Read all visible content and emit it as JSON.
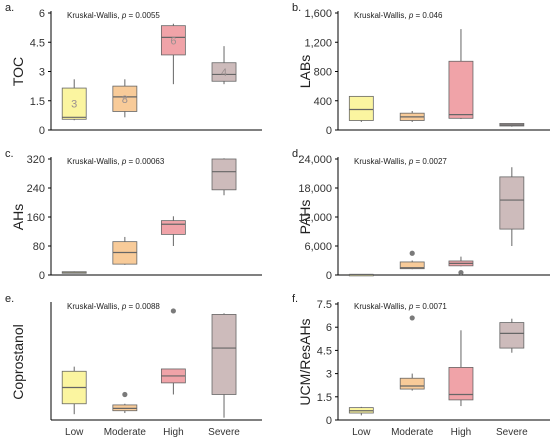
{
  "figure": {
    "type": "boxplot-panel-grid"
  },
  "categories": [
    "Low",
    "Moderate",
    "High",
    "Severe"
  ],
  "colors": {
    "Low": "#fbf5a0",
    "Moderate": "#f8cb99",
    "High": "#f0a3a8",
    "Severe": "#cdbbbb",
    "stroke": "#666666",
    "outlier": "#7a7a7a",
    "axis": "#000000",
    "count_label": "#9a8f8f"
  },
  "chart_data": [
    {
      "type": "boxplot",
      "panel_label": "a.",
      "ylabel": "TOC",
      "stat": "Kruskal-Wallis, p = 0.0055",
      "ylim": [
        0,
        6
      ],
      "yticks": [
        0,
        1.5,
        3,
        4.5,
        6
      ],
      "ytick_labels": [
        "0",
        "1.5",
        "3",
        "4.5",
        "6"
      ],
      "show_xticks": false,
      "boxes": [
        {
          "category": "Low",
          "min": 0.5,
          "q1": 0.55,
          "median": 0.65,
          "q3": 2.15,
          "max": 2.6,
          "outliers": [],
          "count": "3"
        },
        {
          "category": "Moderate",
          "min": 0.65,
          "q1": 0.95,
          "median": 1.7,
          "q3": 2.25,
          "max": 2.6,
          "outliers": [],
          "count": "8"
        },
        {
          "category": "High",
          "min": 2.35,
          "q1": 3.85,
          "median": 4.75,
          "q3": 5.35,
          "max": 5.45,
          "outliers": [],
          "count": "6"
        },
        {
          "category": "Severe",
          "min": 2.35,
          "q1": 2.5,
          "median": 2.85,
          "q3": 3.45,
          "max": 4.3,
          "outliers": [],
          "count": "4"
        }
      ]
    },
    {
      "type": "boxplot",
      "panel_label": "b.",
      "ylabel": "LABs",
      "stat": "Kruskal-Wallis, p = 0.046",
      "ylim": [
        0,
        1600
      ],
      "yticks": [
        0,
        400,
        800,
        1200,
        1600
      ],
      "ytick_labels": [
        "0",
        "400",
        "800",
        "1,200",
        "1,600"
      ],
      "show_xticks": false,
      "boxes": [
        {
          "category": "Low",
          "min": 110,
          "q1": 130,
          "median": 280,
          "q3": 460,
          "max": 460,
          "outliers": []
        },
        {
          "category": "Moderate",
          "min": 110,
          "q1": 130,
          "median": 180,
          "q3": 230,
          "max": 260,
          "outliers": []
        },
        {
          "category": "High",
          "min": 150,
          "q1": 160,
          "median": 210,
          "q3": 940,
          "max": 1380,
          "outliers": []
        },
        {
          "category": "Severe",
          "min": 45,
          "q1": 55,
          "median": 70,
          "q3": 90,
          "max": 95,
          "outliers": []
        }
      ]
    },
    {
      "type": "boxplot",
      "panel_label": "c.",
      "ylabel": "AHs",
      "stat": "Kruskal-Wallis, p = 0.00063",
      "ylim": [
        0,
        320
      ],
      "yticks": [
        0,
        80,
        160,
        240,
        320
      ],
      "ytick_labels": [
        "0",
        "80",
        "160",
        "240",
        "320"
      ],
      "show_xticks": false,
      "boxes": [
        {
          "category": "Low",
          "min": 5,
          "q1": 6,
          "median": 8,
          "q3": 9,
          "max": 10,
          "outliers": []
        },
        {
          "category": "Moderate",
          "min": 28,
          "q1": 30,
          "median": 62,
          "q3": 92,
          "max": 105,
          "outliers": []
        },
        {
          "category": "High",
          "min": 80,
          "q1": 112,
          "median": 140,
          "q3": 150,
          "max": 162,
          "outliers": []
        },
        {
          "category": "Severe",
          "min": 220,
          "q1": 235,
          "median": 285,
          "q3": 320,
          "max": 322,
          "outliers": []
        }
      ]
    },
    {
      "type": "boxplot",
      "panel_label": "d.",
      "ylabel": "PAHs",
      "stat": "Kruskal-Wallis, p = 0.0027",
      "ylim": [
        0,
        24000
      ],
      "yticks": [
        0,
        6000,
        12000,
        18000,
        24000
      ],
      "ytick_labels": [
        "0",
        "6,000",
        "12,000",
        "18,000",
        "24,000"
      ],
      "show_xticks": false,
      "boxes": [
        {
          "category": "Low",
          "min": 80,
          "q1": 90,
          "median": 100,
          "q3": 130,
          "max": 150,
          "outliers": []
        },
        {
          "category": "Moderate",
          "min": 1200,
          "q1": 1300,
          "median": 1500,
          "q3": 2700,
          "max": 3000,
          "outliers": [
            4500
          ]
        },
        {
          "category": "High",
          "min": 1800,
          "q1": 1900,
          "median": 2400,
          "q3": 2900,
          "max": 3800,
          "outliers": [
            500
          ]
        },
        {
          "category": "Severe",
          "min": 6000,
          "q1": 9500,
          "median": 15500,
          "q3": 20300,
          "max": 22300,
          "outliers": []
        }
      ]
    },
    {
      "type": "boxplot",
      "panel_label": "e.",
      "ylabel": "Coprostanol",
      "stat": "Kruskal-Wallis, p = 0.0088",
      "ylim": [
        0,
        5
      ],
      "yticks": [],
      "ytick_labels": [],
      "show_xticks": true,
      "boxes": [
        {
          "category": "Low",
          "min": 0.25,
          "q1": 0.7,
          "median": 1.4,
          "q3": 2.1,
          "max": 2.3,
          "outliers": []
        },
        {
          "category": "Moderate",
          "min": 0.3,
          "q1": 0.4,
          "median": 0.5,
          "q3": 0.65,
          "max": 0.7,
          "outliers": [
            1.1
          ]
        },
        {
          "category": "High",
          "min": 1.1,
          "q1": 1.6,
          "median": 1.9,
          "q3": 2.2,
          "max": 2.2,
          "outliers": [
            4.7
          ]
        },
        {
          "category": "Severe",
          "min": 0.1,
          "q1": 1.1,
          "median": 3.1,
          "q3": 4.55,
          "max": 4.6,
          "outliers": []
        }
      ]
    },
    {
      "type": "boxplot",
      "panel_label": "f.",
      "ylabel": "UCM/ResAHs",
      "stat": "Kruskal-Wallis, p = 0.0071",
      "ylim": [
        0,
        7.5
      ],
      "yticks": [
        0,
        1.5,
        3,
        4.5,
        6,
        7.5
      ],
      "ytick_labels": [
        "0",
        "1.5",
        "3",
        "4.5",
        "6",
        "7.5"
      ],
      "show_xticks": true,
      "boxes": [
        {
          "category": "Low",
          "min": 0.3,
          "q1": 0.45,
          "median": 0.6,
          "q3": 0.8,
          "max": 0.85,
          "outliers": []
        },
        {
          "category": "Moderate",
          "min": 1.9,
          "q1": 2.0,
          "median": 2.2,
          "q3": 2.7,
          "max": 3.0,
          "outliers": [
            6.6
          ]
        },
        {
          "category": "High",
          "min": 0.9,
          "q1": 1.3,
          "median": 1.65,
          "q3": 3.4,
          "max": 5.8,
          "outliers": []
        },
        {
          "category": "Severe",
          "min": 4.35,
          "q1": 4.65,
          "median": 5.6,
          "q3": 6.3,
          "max": 6.55,
          "outliers": []
        }
      ]
    }
  ]
}
